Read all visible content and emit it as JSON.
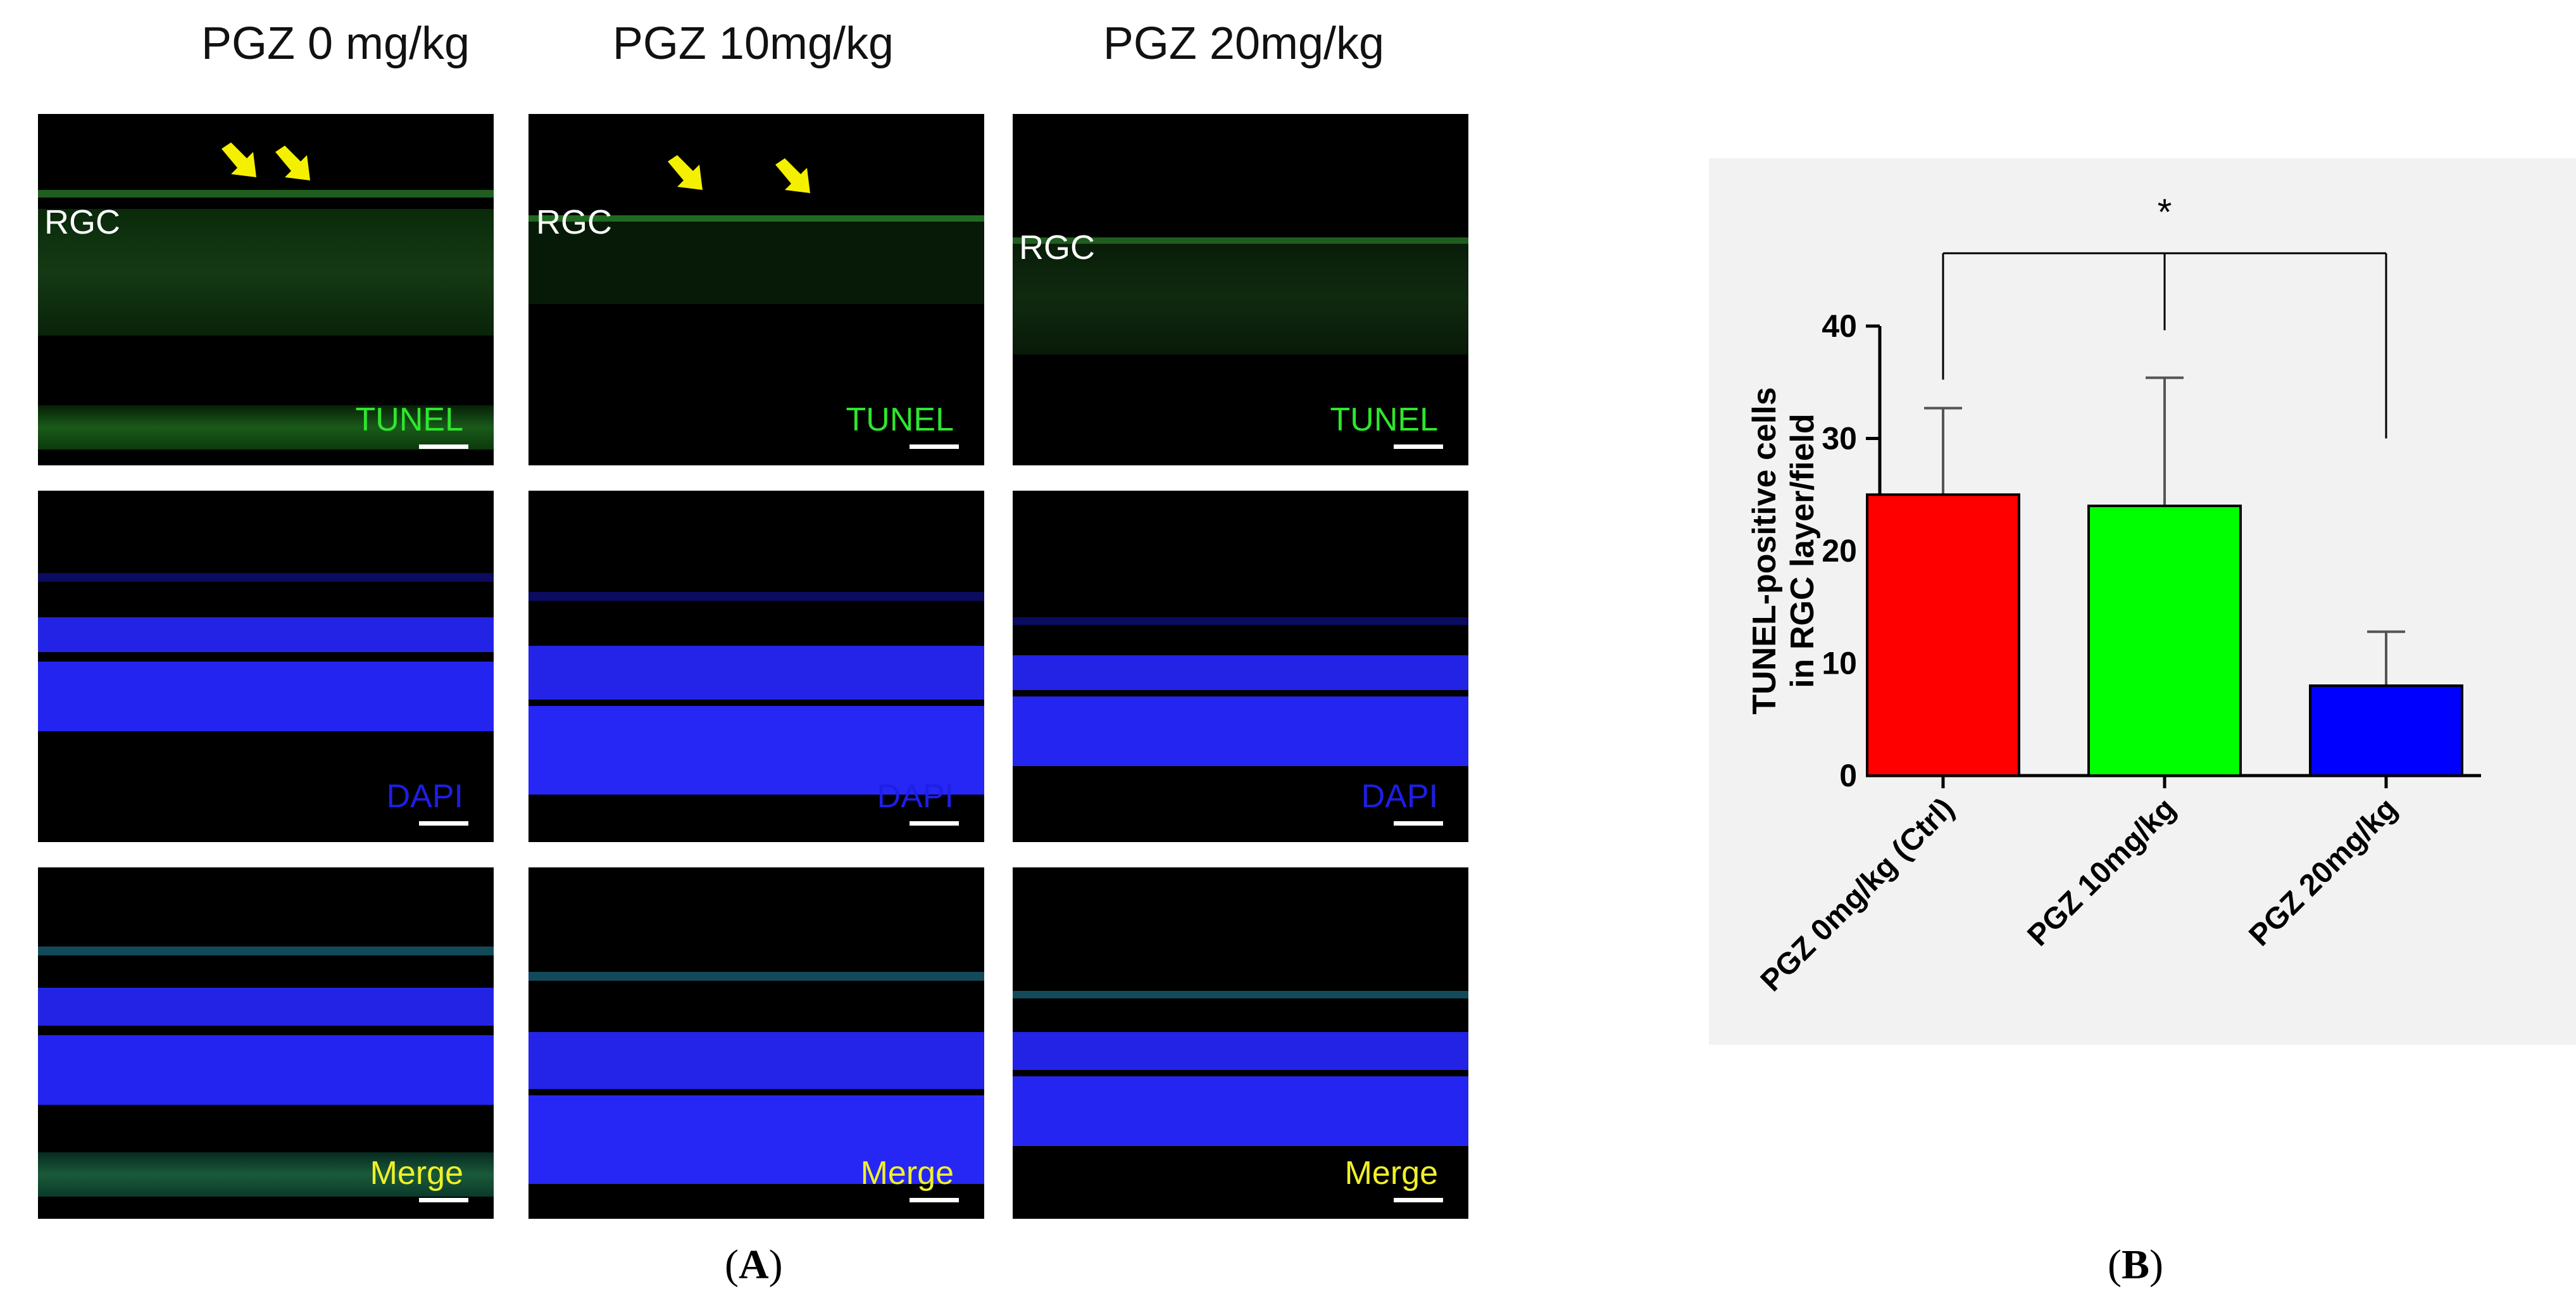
{
  "panel_a": {
    "columns": [
      "PGZ 0 mg/kg",
      "PGZ 10mg/kg",
      "PGZ 20mg/kg"
    ],
    "rows": [
      "TUNEL",
      "DAPI",
      "Merge"
    ],
    "rgc_label": "RGC",
    "figure_label": "A"
  },
  "panel_b": {
    "figure_label": "B"
  },
  "colors": {
    "tunel": "#2ee62e",
    "dapi": "#1e1ee6",
    "merge": "#f0f02a",
    "arrow": "#f5f000"
  },
  "chart_data": {
    "type": "bar",
    "categories": [
      "PGZ 0mg/kg (Ctrl)",
      "PGZ 10mg/kg",
      "PGZ 20mg/kg"
    ],
    "values": [
      25,
      24,
      8
    ],
    "errors": [
      7.7,
      11.4,
      4.8
    ],
    "bar_colors": [
      "#ff0000",
      "#00ff00",
      "#0000ff"
    ],
    "ylabel_line1": "TUNEL-positive cells",
    "ylabel_line2": "in RGC layer/field",
    "ylim": [
      0,
      40
    ],
    "yticks": [
      0,
      10,
      20,
      30,
      40
    ],
    "significance": "*"
  }
}
